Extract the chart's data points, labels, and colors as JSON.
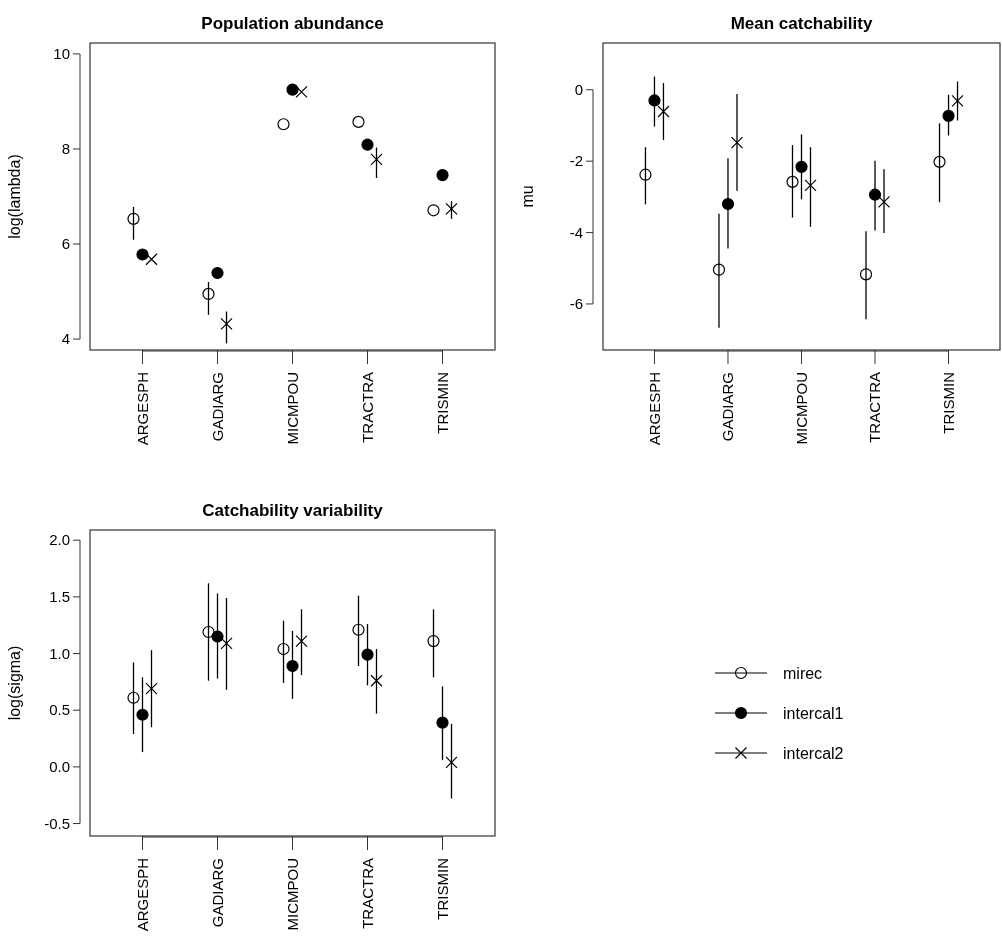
{
  "chart_data": [
    {
      "type": "scatter",
      "title": "Population abundance",
      "ylabel": "log(lambda)",
      "categories": [
        "ARGESPH",
        "GADIARG",
        "MICMPOU",
        "TRACTRA",
        "TRISMIN"
      ],
      "ylim": [
        3.77,
        10.23
      ],
      "yticks": [
        4,
        6,
        8,
        10
      ],
      "legend": "bottom right",
      "series": [
        {
          "name": "mirec",
          "color": "#000000",
          "marker": "circle",
          "values": [
            6.53,
            4.95,
            8.52,
            8.57,
            6.71
          ],
          "errors": [
            [
              6.09,
              6.78
            ],
            [
              4.51,
              5.2
            ],
            null,
            null,
            null
          ]
        },
        {
          "name": "intercal1",
          "color": "#000000",
          "marker": "circle",
          "values": [
            5.78,
            5.39,
            9.25,
            8.09,
            7.45
          ],
          "errors": [
            null,
            null,
            null,
            null,
            null
          ]
        },
        {
          "name": "intercal2",
          "color": "#000000",
          "marker": "cross",
          "values": [
            5.68,
            4.32,
            9.2,
            7.78,
            6.74
          ],
          "errors": [
            null,
            [
              3.91,
              4.58
            ],
            null,
            [
              7.39,
              8.03
            ],
            [
              6.53,
              6.9
            ]
          ]
        }
      ]
    },
    {
      "type": "scatter",
      "title": "Mean catchability",
      "ylabel": "mu",
      "categories": [
        "ARGESPH",
        "GADIARG",
        "MICMPOU",
        "TRACTRA",
        "TRISMIN"
      ],
      "ylim": [
        -7.29,
        1.31
      ],
      "yticks": [
        -6,
        -4,
        -2,
        0
      ],
      "series": [
        {
          "color": "#000000",
          "marker": "circle",
          "values": [
            -2.38,
            -5.04,
            -2.58,
            -5.17,
            -2.02
          ],
          "errors": [
            [
              -3.21,
              -1.61
            ],
            [
              -6.67,
              -3.47
            ],
            [
              -3.58,
              -1.55
            ],
            [
              -6.43,
              -3.96
            ],
            [
              -3.15,
              -0.94
            ]
          ]
        },
        {
          "color": "#000000",
          "marker": "circle",
          "values": [
            -0.3,
            -3.2,
            -2.16,
            -2.94,
            -0.73
          ],
          "errors": [
            [
              -1.03,
              0.37
            ],
            [
              -4.45,
              -1.92
            ],
            [
              -3.07,
              -1.25
            ],
            [
              -3.94,
              -1.99
            ],
            [
              -1.28,
              -0.14
            ]
          ]
        },
        {
          "color": "#000000",
          "marker": "cross",
          "values": [
            -0.61,
            -1.48,
            -2.68,
            -3.14,
            -0.31
          ],
          "errors": [
            [
              -1.41,
              0.19
            ],
            [
              -2.83,
              -0.12
            ],
            [
              -3.84,
              -1.61
            ],
            [
              -4.01,
              -2.23
            ],
            [
              -0.86,
              0.23
            ]
          ]
        }
      ]
    },
    {
      "type": "scatter",
      "title": "Catchability variability",
      "ylabel": "log(sigma)",
      "categories": [
        "ARGESPH",
        "GADIARG",
        "MICMPOU",
        "TRACTRA",
        "TRISMIN"
      ],
      "ylim": [
        -0.61,
        2.09
      ],
      "yticks": [
        -0.5,
        {
          "value": 0,
          "label": "0.0"
        },
        0.5,
        {
          "value": 1,
          "label": "1.0"
        },
        1.5,
        {
          "value": 2,
          "label": "2.0"
        }
      ],
      "series": [
        {
          "color": "#000000",
          "marker": "circle",
          "values": [
            0.61,
            1.19,
            1.04,
            1.21,
            1.11
          ],
          "errors": [
            [
              0.29,
              0.92
            ],
            [
              0.76,
              1.62
            ],
            [
              0.74,
              1.29
            ],
            [
              0.89,
              1.51
            ],
            [
              0.79,
              1.39
            ]
          ]
        },
        {
          "color": "#000000",
          "marker": "circle",
          "values": [
            0.46,
            1.15,
            0.89,
            0.99,
            0.39
          ],
          "errors": [
            [
              0.13,
              0.79
            ],
            [
              0.78,
              1.53
            ],
            [
              0.6,
              1.2
            ],
            [
              0.72,
              1.26
            ],
            [
              0.06,
              0.71
            ]
          ]
        },
        {
          "color": "#000000",
          "marker": "cross",
          "values": [
            0.69,
            1.09,
            1.11,
            0.76,
            0.04
          ],
          "errors": [
            [
              0.35,
              1.03
            ],
            [
              0.68,
              1.49
            ],
            [
              0.81,
              1.39
            ],
            [
              0.47,
              1.04
            ],
            [
              -0.28,
              0.38
            ]
          ]
        }
      ]
    }
  ]
}
